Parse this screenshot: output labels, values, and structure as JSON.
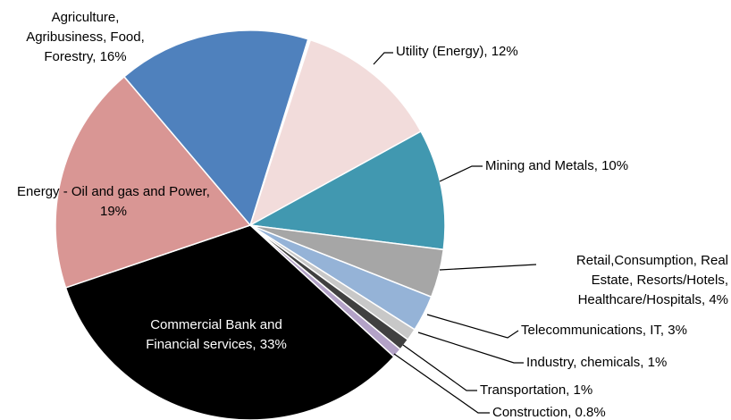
{
  "chart_data": {
    "type": "pie",
    "categories": [
      "Utility (Energy),",
      "Mining and Metals,",
      "Retail,Consumption, Real Estate, Resorts/Hotels, Healthcare/Hospitals,",
      "Telecommunications, IT,",
      "Industry, chemicals,",
      "Transportation,",
      "Construction,",
      "Commercial Bank and Financial services,",
      "Energy - Oil and gas and Power,",
      "Agriculture, Agribusiness, Food, Forestry,"
    ],
    "values": [
      12,
      10,
      4,
      3,
      1,
      1,
      0.8,
      33,
      19,
      16
    ],
    "value_labels": [
      "12%",
      "10%",
      "4%",
      "3%",
      "1%",
      "1%",
      "0.8%",
      "33%",
      "19%",
      "16%"
    ],
    "colors": [
      "#f2dcdb",
      "#4198b0",
      "#a6a6a6",
      "#95b3d7",
      "#c8c8c8",
      "#404040",
      "#b3a2c7",
      "#000000",
      "#d99694",
      "#4f81bd"
    ]
  }
}
